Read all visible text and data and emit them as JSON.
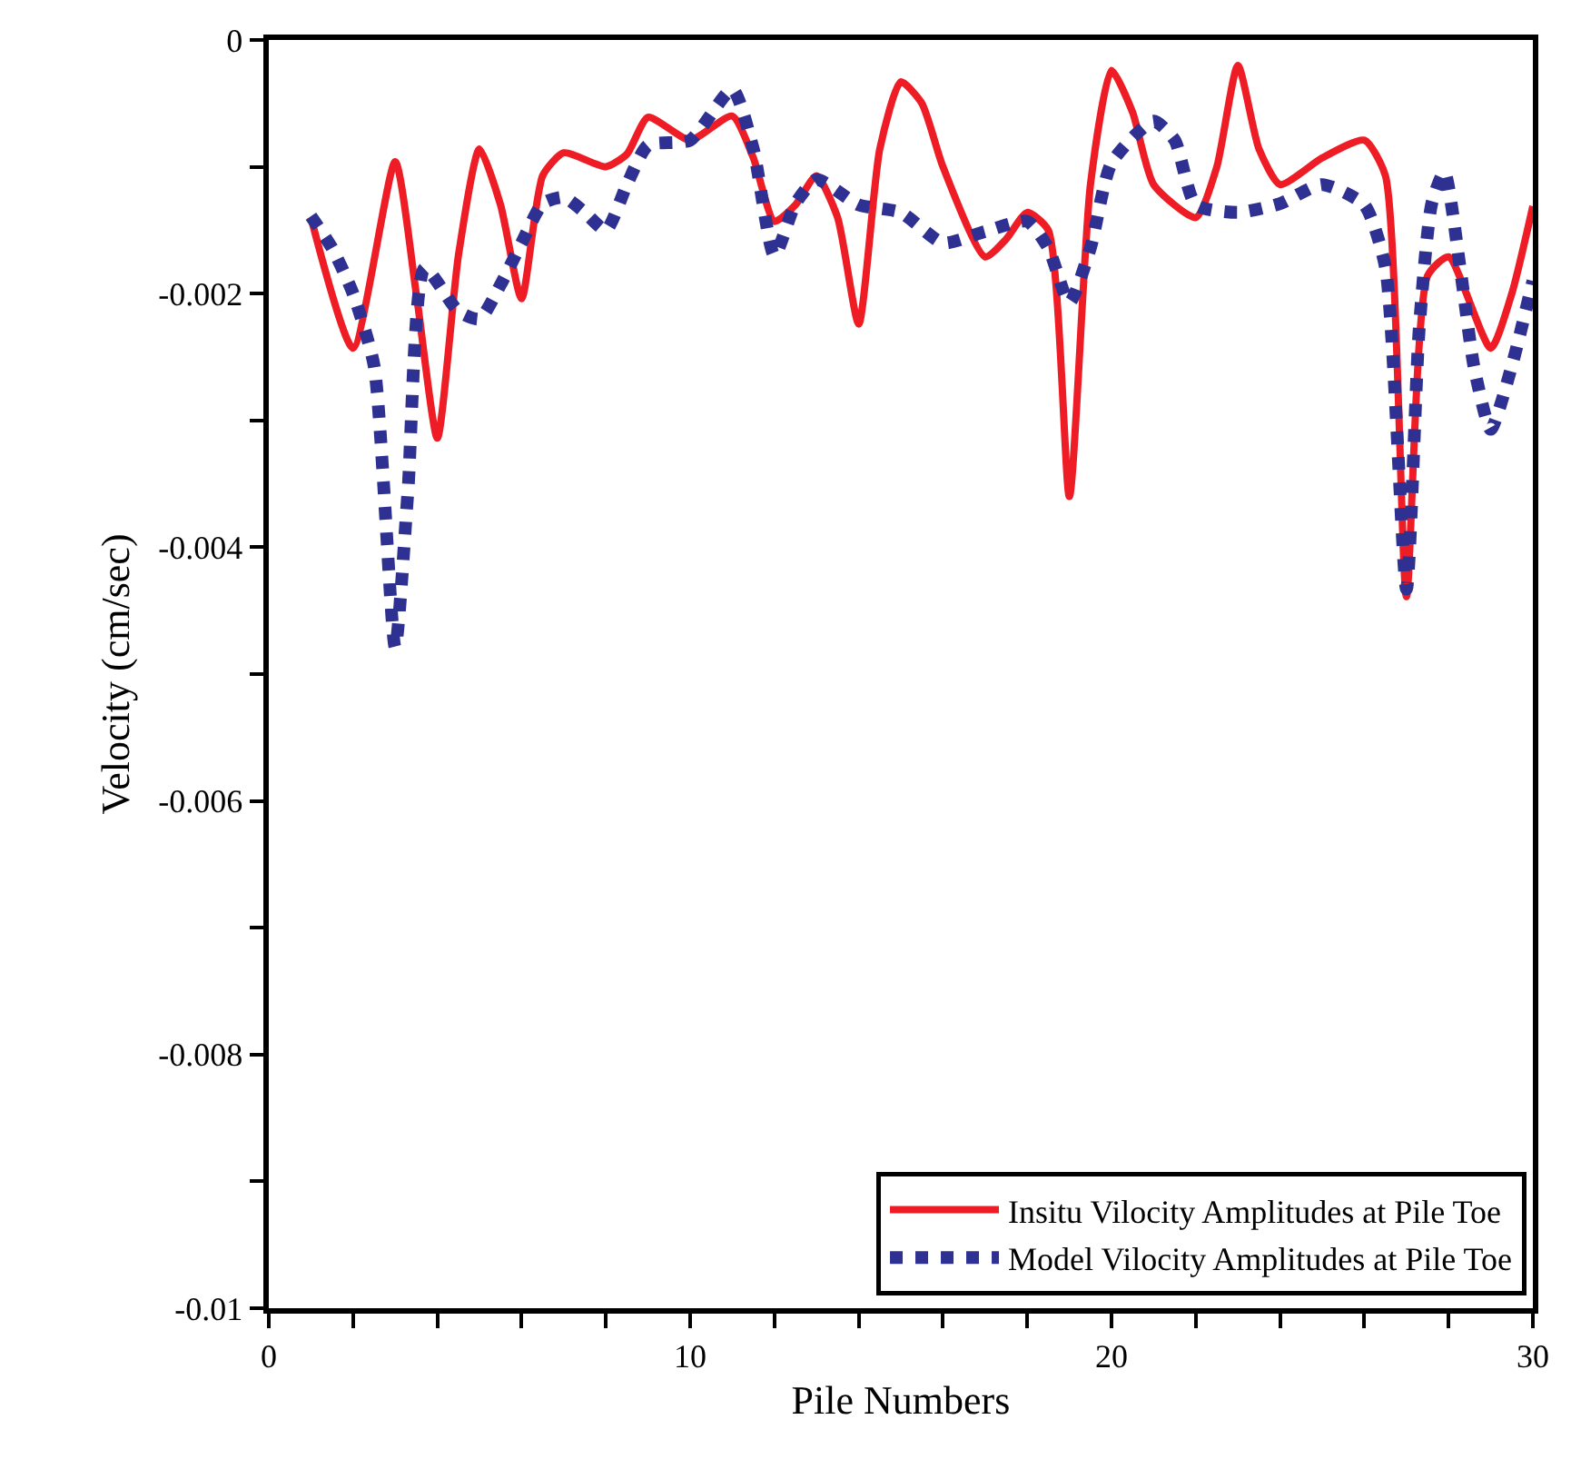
{
  "chart_data": {
    "type": "line",
    "xlabel": "Pile Numbers",
    "ylabel": "Velocity (cm/sec)",
    "xlim": [
      0,
      30
    ],
    "xticks": [
      0,
      {
        "value": 2,
        "label": null
      },
      {
        "value": 4,
        "label": null
      },
      {
        "value": 6,
        "label": null
      },
      {
        "value": 8,
        "label": null
      },
      10,
      {
        "value": 12,
        "label": null
      },
      {
        "value": 14,
        "label": null
      },
      {
        "value": 16,
        "label": null
      },
      {
        "value": 18,
        "label": null
      },
      20,
      {
        "value": 22,
        "label": null
      },
      {
        "value": 24,
        "label": null
      },
      {
        "value": 26,
        "label": null
      },
      {
        "value": 28,
        "label": null
      },
      30
    ],
    "ylim": [
      -0.01,
      0
    ],
    "yticks": [
      -0.01,
      {
        "value": -0.009,
        "label": null
      },
      -0.008,
      {
        "value": -0.007,
        "label": null
      },
      -0.006,
      {
        "value": -0.005,
        "label": null
      },
      -0.004,
      {
        "value": -0.003,
        "label": null
      },
      -0.002,
      {
        "value": -0.001,
        "label": null
      },
      0
    ],
    "legend": "bottom right",
    "marker": "none",
    "series": [
      {
        "name": "Insitu Vilocity Amplitudes at Pile Toe",
        "color": "#ee1c25",
        "line_style": "solid",
        "x": [
          1,
          2,
          3,
          3.5,
          4,
          4.5,
          5,
          5.5,
          6,
          6.5,
          7,
          8,
          8.5,
          9,
          10,
          11,
          11.5,
          12,
          12.5,
          13,
          13.5,
          14,
          14.5,
          15,
          15.5,
          16,
          17,
          17.5,
          18,
          18.5,
          19,
          19.5,
          20,
          20.5,
          21,
          22,
          22.5,
          23,
          23.5,
          24,
          25,
          26,
          26.5,
          27,
          27.5,
          28,
          29,
          29.5,
          30
        ],
        "values": [
          -0.0014,
          -0.00243,
          -0.00096,
          -0.002,
          -0.00314,
          -0.0017,
          -0.00086,
          -0.0013,
          -0.00204,
          -0.00107,
          -0.00089,
          -0.001,
          -0.0009,
          -0.00061,
          -0.00079,
          -0.0006,
          -0.00093,
          -0.00143,
          -0.0013,
          -0.00107,
          -0.0014,
          -0.00224,
          -0.00086,
          -0.00033,
          -0.0005,
          -0.001,
          -0.00171,
          -0.00157,
          -0.00136,
          -0.0015,
          -0.0036,
          -0.00114,
          -0.00024,
          -0.00057,
          -0.00114,
          -0.0014,
          -0.001,
          -0.0002,
          -0.00086,
          -0.00114,
          -0.00093,
          -0.00079,
          -0.00107,
          -0.00439,
          -0.00186,
          -0.00171,
          -0.00243,
          -0.002,
          -0.00131
        ]
      },
      {
        "name": "Model Vilocity Amplitudes at Pile Toe",
        "color": "#2e3192",
        "line_style": "dotted",
        "x": [
          1,
          1.5,
          2,
          2.5,
          3,
          3.3,
          3.7,
          4.5,
          5,
          5.5,
          6,
          6.5,
          7,
          7.5,
          8,
          8.5,
          9,
          10,
          11,
          11.5,
          12,
          12.5,
          13,
          14,
          15,
          16,
          17,
          18,
          18.5,
          19,
          19.5,
          20,
          21,
          21.5,
          22,
          23,
          24,
          25,
          26,
          26.5,
          27,
          27.3,
          27.6,
          27.9,
          28.3,
          28.6,
          29,
          29.5,
          30
        ],
        "values": [
          -0.00139,
          -0.00164,
          -0.002,
          -0.00257,
          -0.00479,
          -0.00357,
          -0.0018,
          -0.00214,
          -0.0022,
          -0.00193,
          -0.0016,
          -0.00129,
          -0.00124,
          -0.00136,
          -0.0015,
          -0.00114,
          -0.00083,
          -0.00079,
          -0.00039,
          -0.00086,
          -0.0017,
          -0.00129,
          -0.0011,
          -0.0013,
          -0.00136,
          -0.0016,
          -0.00151,
          -0.00143,
          -0.00164,
          -0.00207,
          -0.00164,
          -0.00097,
          -0.00064,
          -0.00079,
          -0.0013,
          -0.00136,
          -0.00129,
          -0.00114,
          -0.0013,
          -0.00179,
          -0.00433,
          -0.00229,
          -0.00129,
          -0.00104,
          -0.00186,
          -0.00257,
          -0.00307,
          -0.00257,
          -0.0019
        ]
      }
    ]
  }
}
